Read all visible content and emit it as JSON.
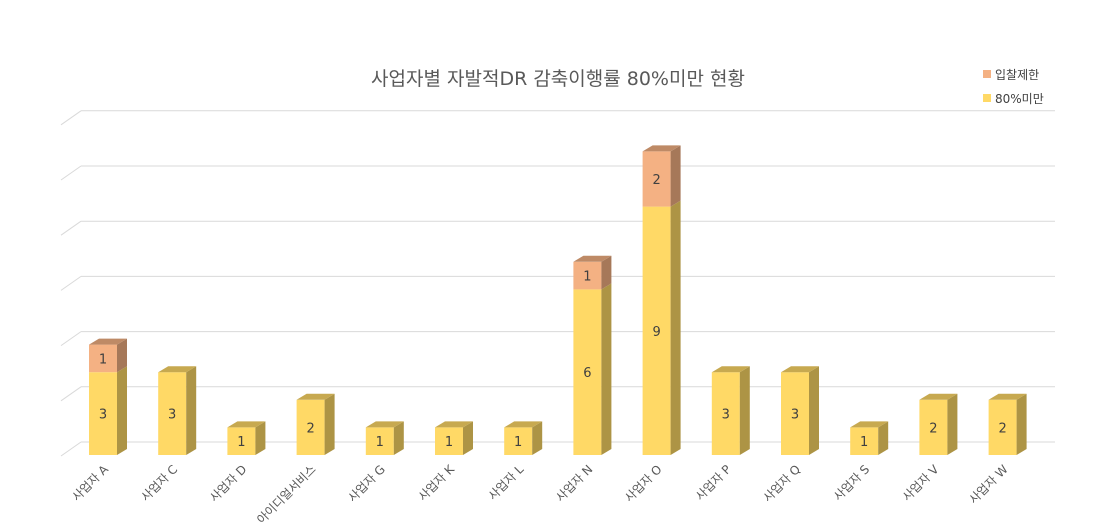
{
  "chart_data": {
    "type": "bar",
    "stacked": true,
    "three_d": true,
    "title": "사업자별 자발적DR 감축이행률 80%미만 현황",
    "xlabel": "",
    "ylabel": "",
    "categories": [
      "사업자 A",
      "사업자 C",
      "사업자 D",
      "아이디얼서비스",
      "사업자 G",
      "사업자 K",
      "사업자 L",
      "사업자 N",
      "사업자 O",
      "사업자 P",
      "사업자 Q",
      "사업자 S",
      "사업자 V",
      "사업자 W"
    ],
    "series": [
      {
        "name": "80%미만",
        "color": "#FFD966",
        "values": [
          3,
          3,
          1,
          2,
          1,
          1,
          1,
          6,
          9,
          3,
          3,
          1,
          2,
          2
        ]
      },
      {
        "name": "입찰제한",
        "color": "#F4B183",
        "values": [
          1,
          0,
          0,
          0,
          0,
          0,
          0,
          1,
          2,
          0,
          0,
          0,
          0,
          0
        ]
      }
    ],
    "ylim": [
      0,
      12
    ],
    "grid": true,
    "show_y_tick_labels": false,
    "legend_position": "top-right",
    "legend_order": [
      "입찰제한",
      "80%미만"
    ]
  }
}
